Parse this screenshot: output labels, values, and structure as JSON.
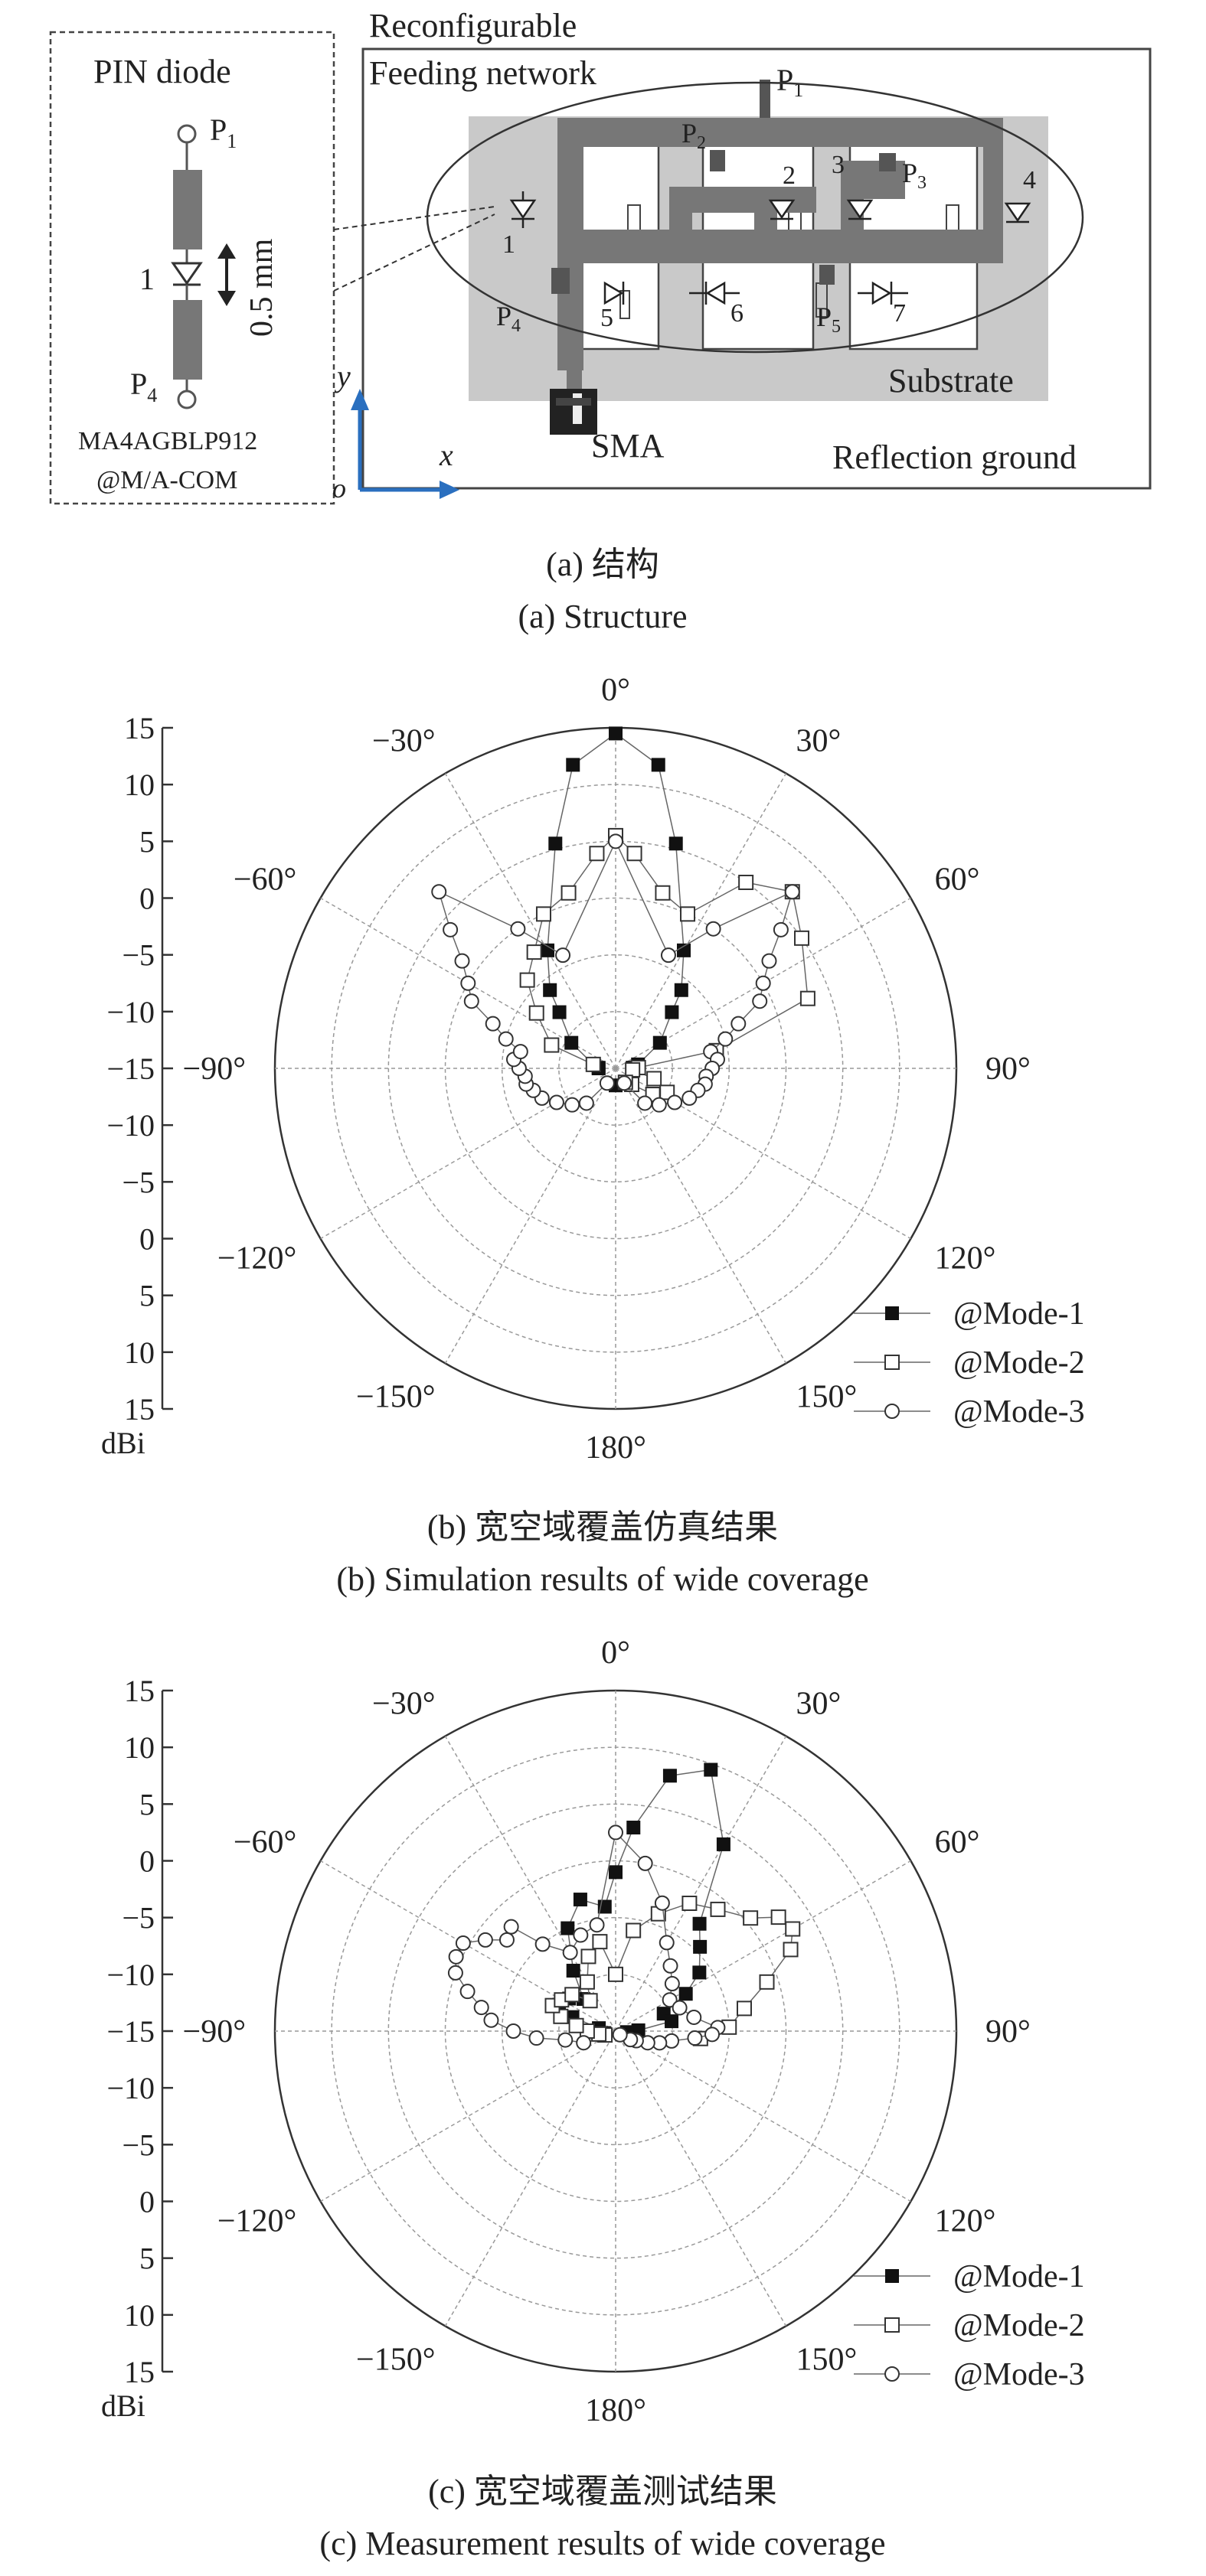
{
  "structure": {
    "pin_box_title": "PIN diode",
    "p1": "P",
    "p1_sub": "1",
    "p4": "P",
    "p4_sub": "4",
    "diode_num": "1",
    "gap": "0.5 mm",
    "part_number": "MA4AGBLP912",
    "vendor": "@M/A-COM",
    "network_label_1": "Reconfigurable",
    "network_label_2": "Feeding network",
    "substrate": "Substrate",
    "sma": "SMA",
    "ground": "Reflection ground",
    "axis_y": "y",
    "axis_x": "x",
    "axis_o": "o",
    "ports": [
      {
        "label": "P",
        "sub": "1"
      },
      {
        "label": "P",
        "sub": "2"
      },
      {
        "label": "P",
        "sub": "3"
      },
      {
        "label": "P",
        "sub": "4"
      },
      {
        "label": "P",
        "sub": "5"
      }
    ],
    "diode_numbers": [
      "1",
      "2",
      "3",
      "4",
      "5",
      "6",
      "7"
    ]
  },
  "captions": {
    "a_cn": "(a) 结构",
    "a_en": "(a) Structure",
    "b_cn": "(b) 宽空域覆盖仿真结果",
    "b_en": "(b) Simulation results of wide coverage",
    "c_cn": "(c) 宽空域覆盖测试结果",
    "c_en": "(c) Measurement results of wide coverage"
  },
  "chart_data": [
    {
      "type": "scatter",
      "subtype": "polar",
      "unit": "dBi",
      "r_range": [
        -15,
        15
      ],
      "r_ticks": [
        "15",
        "10",
        "5",
        "0",
        "-5",
        "-10",
        "-15",
        "-10",
        "-5",
        "0",
        "5",
        "10",
        "15"
      ],
      "angle_ticks": [
        "0°",
        "30°",
        "60°",
        "90°",
        "120°",
        "150°",
        "180°",
        "−150°",
        "−120°",
        "−90°",
        "−60°",
        "−30°"
      ],
      "legend_position": "bottom-right",
      "series": [
        {
          "name": "@Mode-1",
          "marker": "filled-square",
          "angles": [
            -90,
            -88,
            -80,
            -60,
            -45,
            -40,
            -30,
            -15,
            -8,
            0,
            8,
            15,
            30,
            40,
            45,
            60,
            80,
            88,
            90,
            180
          ],
          "values": [
            -13.5,
            -13.5,
            -13,
            -10.5,
            -8,
            -6,
            -3,
            5.5,
            12,
            14.5,
            12,
            5.5,
            -3,
            -6,
            -8,
            -10.5,
            -13,
            -13.5,
            -13.5,
            -13.5
          ]
        },
        {
          "name": "@Mode-2",
          "marker": "open-square",
          "angles": [
            -80,
            -70,
            -55,
            -45,
            -35,
            -25,
            -15,
            -5,
            0,
            5,
            15,
            25,
            35,
            45,
            55,
            70,
            80,
            88,
            95,
            105,
            115,
            125,
            135,
            145
          ],
          "values": [
            -13,
            -9,
            -6.5,
            -4,
            -2.5,
            0,
            1,
            4,
            5.5,
            4,
            1,
            0,
            5,
            7,
            5,
            3,
            -6,
            -13,
            -13.5,
            -11.5,
            -10,
            -11,
            -13,
            -13.5
          ]
        },
        {
          "name": "@Mode-3",
          "marker": "open-circle",
          "angles": [
            -150,
            -140,
            -130,
            -120,
            -112,
            -105,
            -100,
            -95,
            -90,
            -85,
            -80,
            -75,
            -70,
            -65,
            -60,
            -55,
            -50,
            -45,
            -35,
            -25,
            0,
            25,
            35,
            45,
            50,
            55,
            60,
            65,
            70,
            75,
            80,
            85,
            90,
            95,
            100,
            105,
            112,
            120,
            130,
            140,
            150
          ],
          "values": [
            -13.5,
            -11,
            -10,
            -9,
            -8,
            -7.5,
            -7,
            -7,
            -6.5,
            -6,
            -6.5,
            -5,
            -3.5,
            -1,
            0,
            1.5,
            4,
            7,
            0,
            -4,
            5,
            -4,
            0,
            7,
            4,
            1.5,
            0,
            -1,
            -3.5,
            -5,
            -6.5,
            -6,
            -6.5,
            -7,
            -7,
            -7.5,
            -8,
            -9,
            -10,
            -11,
            -13.5
          ]
        }
      ]
    },
    {
      "type": "scatter",
      "subtype": "polar",
      "unit": "dBi",
      "r_range": [
        -15,
        15
      ],
      "r_ticks": [
        "15",
        "10",
        "5",
        "0",
        "-5",
        "-10",
        "-15",
        "-10",
        "-5",
        "0",
        "5",
        "10",
        "15"
      ],
      "angle_ticks": [
        "0°",
        "30°",
        "60°",
        "90°",
        "120°",
        "150°",
        "180°",
        "−150°",
        "−120°",
        "−90°",
        "−60°",
        "−30°"
      ],
      "legend_position": "bottom-right",
      "series": [
        {
          "name": "@Mode-1",
          "marker": "filled-square",
          "angles": [
            -100,
            -90,
            -80,
            -72,
            -65,
            -55,
            -45,
            -35,
            -25,
            -15,
            -5,
            0,
            5,
            12,
            20,
            30,
            38,
            45,
            55,
            62,
            70,
            80,
            88,
            95
          ],
          "values": [
            -14,
            -13,
            -13.5,
            -11,
            -9.5,
            -10,
            -11,
            -8.5,
            -5,
            -3,
            -4,
            -1,
            3,
            8,
            9.5,
            4,
            -3,
            -4.5,
            -6,
            -8,
            -10.5,
            -10,
            -13,
            -14
          ]
        },
        {
          "name": "@Mode-2",
          "marker": "open-square",
          "angles": [
            -110,
            -100,
            -90,
            -82,
            -75,
            -68,
            -60,
            -50,
            -40,
            -30,
            -20,
            -10,
            0,
            10,
            20,
            30,
            40,
            50,
            55,
            60,
            65,
            72,
            80,
            88,
            95
          ],
          "values": [
            -14,
            -13.5,
            -12.5,
            -11.5,
            -10,
            -9,
            -9.5,
            -10,
            -11.5,
            -10,
            -8,
            -7,
            -10,
            -6,
            -4,
            -2,
            -1,
            0.5,
            2.5,
            3,
            2,
            -1,
            -3.5,
            -5,
            -7.5
          ]
        },
        {
          "name": "@Mode-3",
          "marker": "open-circle",
          "angles": [
            -110,
            -100,
            -95,
            -90,
            -85,
            -80,
            -75,
            -70,
            -65,
            -60,
            -55,
            -50,
            -45,
            -40,
            -30,
            -20,
            -10,
            0,
            10,
            20,
            30,
            40,
            50,
            60,
            70,
            80,
            88,
            92,
            95,
            100,
            105,
            110,
            115,
            120,
            130
          ],
          "values": [
            -12,
            -10.5,
            -8,
            -6,
            -4,
            -3,
            -1.5,
            0,
            0.5,
            0.5,
            -1,
            -2.5,
            -2,
            -5,
            -7,
            -6,
            -5.5,
            2.5,
            0,
            -3,
            -6,
            -7.5,
            -8.5,
            -9.5,
            -9,
            -8,
            -6,
            -6.5,
            -8,
            -10,
            -11,
            -12,
            -13,
            -13.5,
            -14.5
          ]
        }
      ]
    }
  ]
}
